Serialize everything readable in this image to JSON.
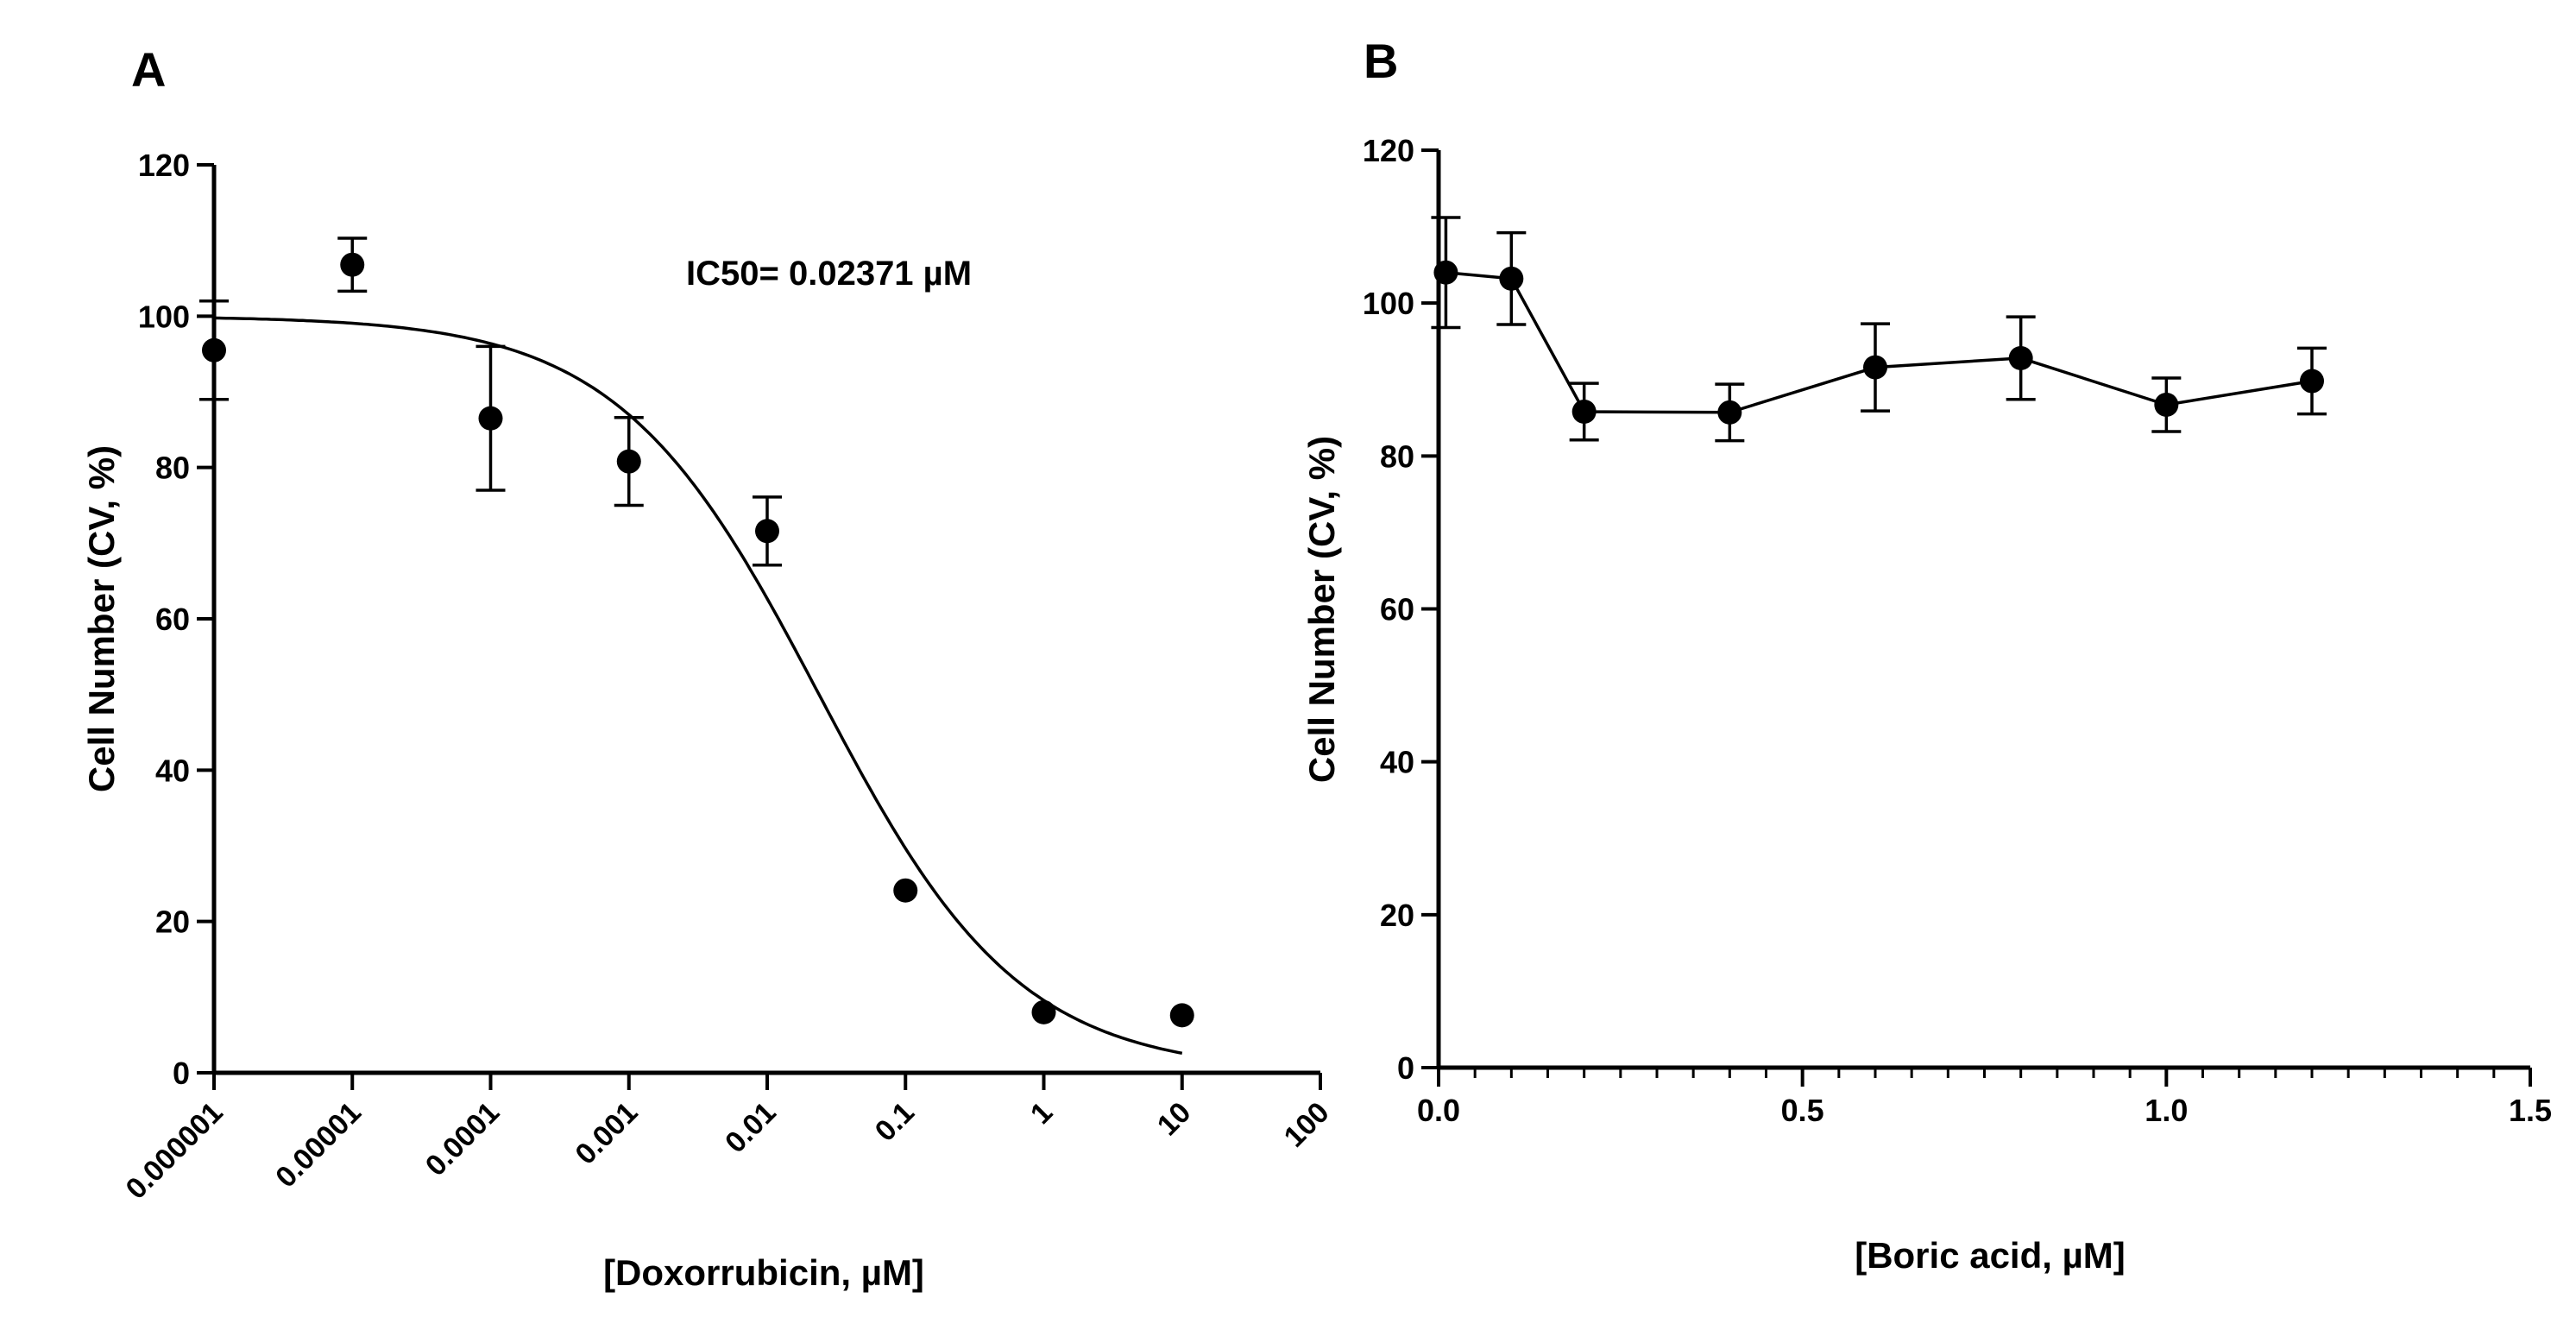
{
  "colors": {
    "ink": "#000000",
    "background": "#ffffff"
  },
  "chart_data": [
    {
      "panel": "A",
      "type": "scatter",
      "x_scale": "log",
      "title": "",
      "xlabel": "[Doxorrubicin, µM]",
      "ylabel": "Cell Number (CV, %)",
      "annotation": "IC50= 0.02371 µM",
      "xlim": [
        1e-06,
        100
      ],
      "ylim": [
        0,
        120
      ],
      "x_ticks": [
        1e-06,
        1e-05,
        0.0001,
        0.001,
        0.01,
        0.1,
        1,
        10,
        100
      ],
      "x_tick_labels": [
        "0.000001",
        "0.00001",
        "0.0001",
        "0.001",
        "0.01",
        "0.1",
        "1",
        "10",
        "100"
      ],
      "y_ticks": [
        0,
        20,
        40,
        60,
        80,
        100,
        120
      ],
      "y_tick_labels": [
        "0",
        "20",
        "40",
        "60",
        "80",
        "100",
        "120"
      ],
      "x": [
        1e-06,
        1e-05,
        0.0001,
        0.001,
        0.01,
        0.1,
        1,
        10
      ],
      "y": [
        95.5,
        106.8,
        86.5,
        80.8,
        71.6,
        24.1,
        8.0,
        7.6
      ],
      "error": [
        6.5,
        3.5,
        9.5,
        5.8,
        4.5,
        null,
        null,
        null
      ],
      "fit": {
        "model": "sigmoidal dose-response",
        "top": 100,
        "bottom": 0,
        "ic50": 0.02371,
        "hill": 0.6
      }
    },
    {
      "panel": "B",
      "type": "line",
      "x_scale": "linear",
      "title": "",
      "xlabel": "[Boric acid, µM]",
      "ylabel": "Cell Number (CV, %)",
      "xlim": [
        0,
        1.5
      ],
      "ylim": [
        0,
        120
      ],
      "x_ticks": [
        0,
        0.5,
        1.0,
        1.5
      ],
      "x_tick_labels": [
        "0.0",
        "0.5",
        "1.0",
        "1.5"
      ],
      "y_ticks": [
        0,
        20,
        40,
        60,
        80,
        100,
        120
      ],
      "y_tick_labels": [
        "0",
        "20",
        "40",
        "60",
        "80",
        "100",
        "120"
      ],
      "x_minor_step": 0.05,
      "x": [
        0.01,
        0.1,
        0.2,
        0.4,
        0.6,
        0.8,
        1.0,
        1.2
      ],
      "y": [
        104.0,
        103.2,
        85.8,
        85.7,
        91.6,
        92.8,
        86.7,
        89.8
      ],
      "error": [
        7.2,
        6.0,
        3.7,
        3.7,
        5.7,
        5.4,
        3.5,
        4.3
      ]
    }
  ]
}
